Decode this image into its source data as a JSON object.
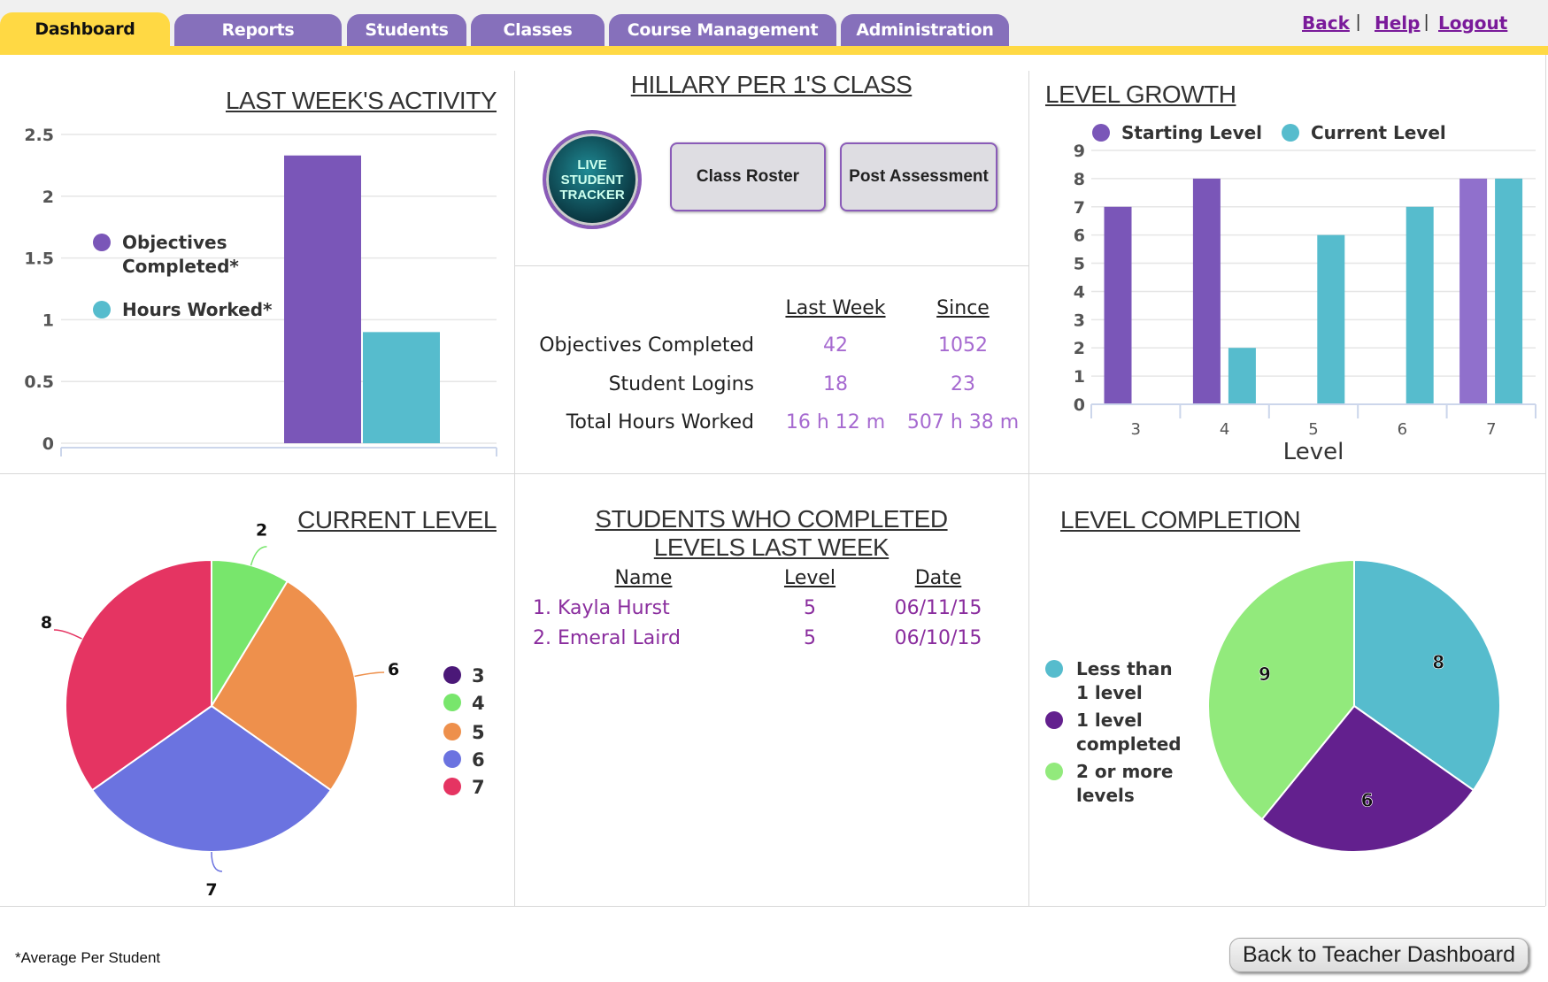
{
  "nav": {
    "tabs": [
      "Dashboard",
      "Reports",
      "Students",
      "Classes",
      "Course Management",
      "Administration"
    ],
    "active_tab": "Dashboard",
    "links": [
      "Back",
      "Help",
      "Logout"
    ],
    "separator": "|"
  },
  "activity": {
    "title": "LAST WEEK'S ACTIVITY",
    "legend": [
      "Objectives Completed*",
      "Hours Worked*"
    ]
  },
  "class_panel": {
    "title": "HILLARY PER 1'S CLASS",
    "logo_text": [
      "LIVE",
      "STUDENT",
      "TRACKER"
    ],
    "buttons": {
      "roster": "Class Roster",
      "assessment": "Post Assessment"
    },
    "headers": {
      "last_week": "Last Week",
      "since": "Since"
    },
    "rows": [
      {
        "label": "Objectives Completed",
        "last_week": "42",
        "since": "1052"
      },
      {
        "label": "Student Logins",
        "last_week": "18",
        "since": "23"
      },
      {
        "label": "Total Hours Worked",
        "last_week": "16 h 12 m",
        "since": "507 h 38 m"
      }
    ]
  },
  "level_growth": {
    "title": "LEVEL GROWTH"
  },
  "current_level": {
    "title": "CURRENT LEVEL"
  },
  "completed": {
    "title_line1": "STUDENTS WHO COMPLETED",
    "title_line2": "LEVELS LAST WEEK",
    "headers": {
      "name": "Name",
      "level": "Level",
      "date": "Date"
    },
    "rows": [
      {
        "name": "1. Kayla Hurst",
        "level": "5",
        "date": "06/11/15"
      },
      {
        "name": "2. Emeral Laird",
        "level": "5",
        "date": "06/10/15"
      }
    ]
  },
  "level_completion": {
    "title": "LEVEL COMPLETION"
  },
  "footer": {
    "note": "*Average Per Student",
    "back_button": "Back to Teacher Dashboard"
  },
  "chart_data": [
    {
      "type": "bar",
      "title": "LAST WEEK'S ACTIVITY",
      "categories": [
        ""
      ],
      "series": [
        {
          "name": "Objectives Completed*",
          "values": [
            2.33
          ],
          "color": "#7a56b8"
        },
        {
          "name": "Hours Worked*",
          "values": [
            0.9
          ],
          "color": "#56bccd"
        }
      ],
      "ylim": [
        0,
        2.5
      ],
      "yticks": [
        "0",
        "0.5",
        "1",
        "1.5",
        "2",
        "2.5"
      ],
      "grid": true,
      "legend": "left"
    },
    {
      "type": "bar",
      "title": "LEVEL GROWTH",
      "xlabel": "Level",
      "categories": [
        "3",
        "4",
        "5",
        "6",
        "7"
      ],
      "series": [
        {
          "name": "Starting Level",
          "values": [
            7,
            8,
            0,
            0,
            8
          ],
          "color": "#7a56b8"
        },
        {
          "name": "Current Level",
          "values": [
            0,
            2,
            6,
            7,
            8
          ],
          "color": "#56bccd"
        }
      ],
      "ylim": [
        0,
        9
      ],
      "yticks": [
        "0",
        "1",
        "2",
        "3",
        "4",
        "5",
        "6",
        "7",
        "8",
        "9"
      ],
      "grid": true,
      "legend": "top"
    },
    {
      "type": "pie",
      "title": "CURRENT LEVEL",
      "slices": [
        {
          "label": "3",
          "value": 0,
          "color": "#4b1878"
        },
        {
          "label": "4",
          "value": 2,
          "color": "#78e66c"
        },
        {
          "label": "5",
          "value": 6,
          "color": "#ee904c"
        },
        {
          "label": "6",
          "value": 7,
          "color": "#6b73e0"
        },
        {
          "label": "7",
          "value": 8,
          "color": "#e53462"
        }
      ],
      "legend": "right"
    },
    {
      "type": "pie",
      "title": "LEVEL COMPLETION",
      "slices": [
        {
          "label": "Less than 1 level",
          "value": 8,
          "color": "#56bccd"
        },
        {
          "label": "1 level completed",
          "value": 6,
          "color": "#63208e"
        },
        {
          "label": "2 or more levels",
          "value": 9,
          "color": "#92ea7c"
        }
      ],
      "legend": "left"
    }
  ]
}
